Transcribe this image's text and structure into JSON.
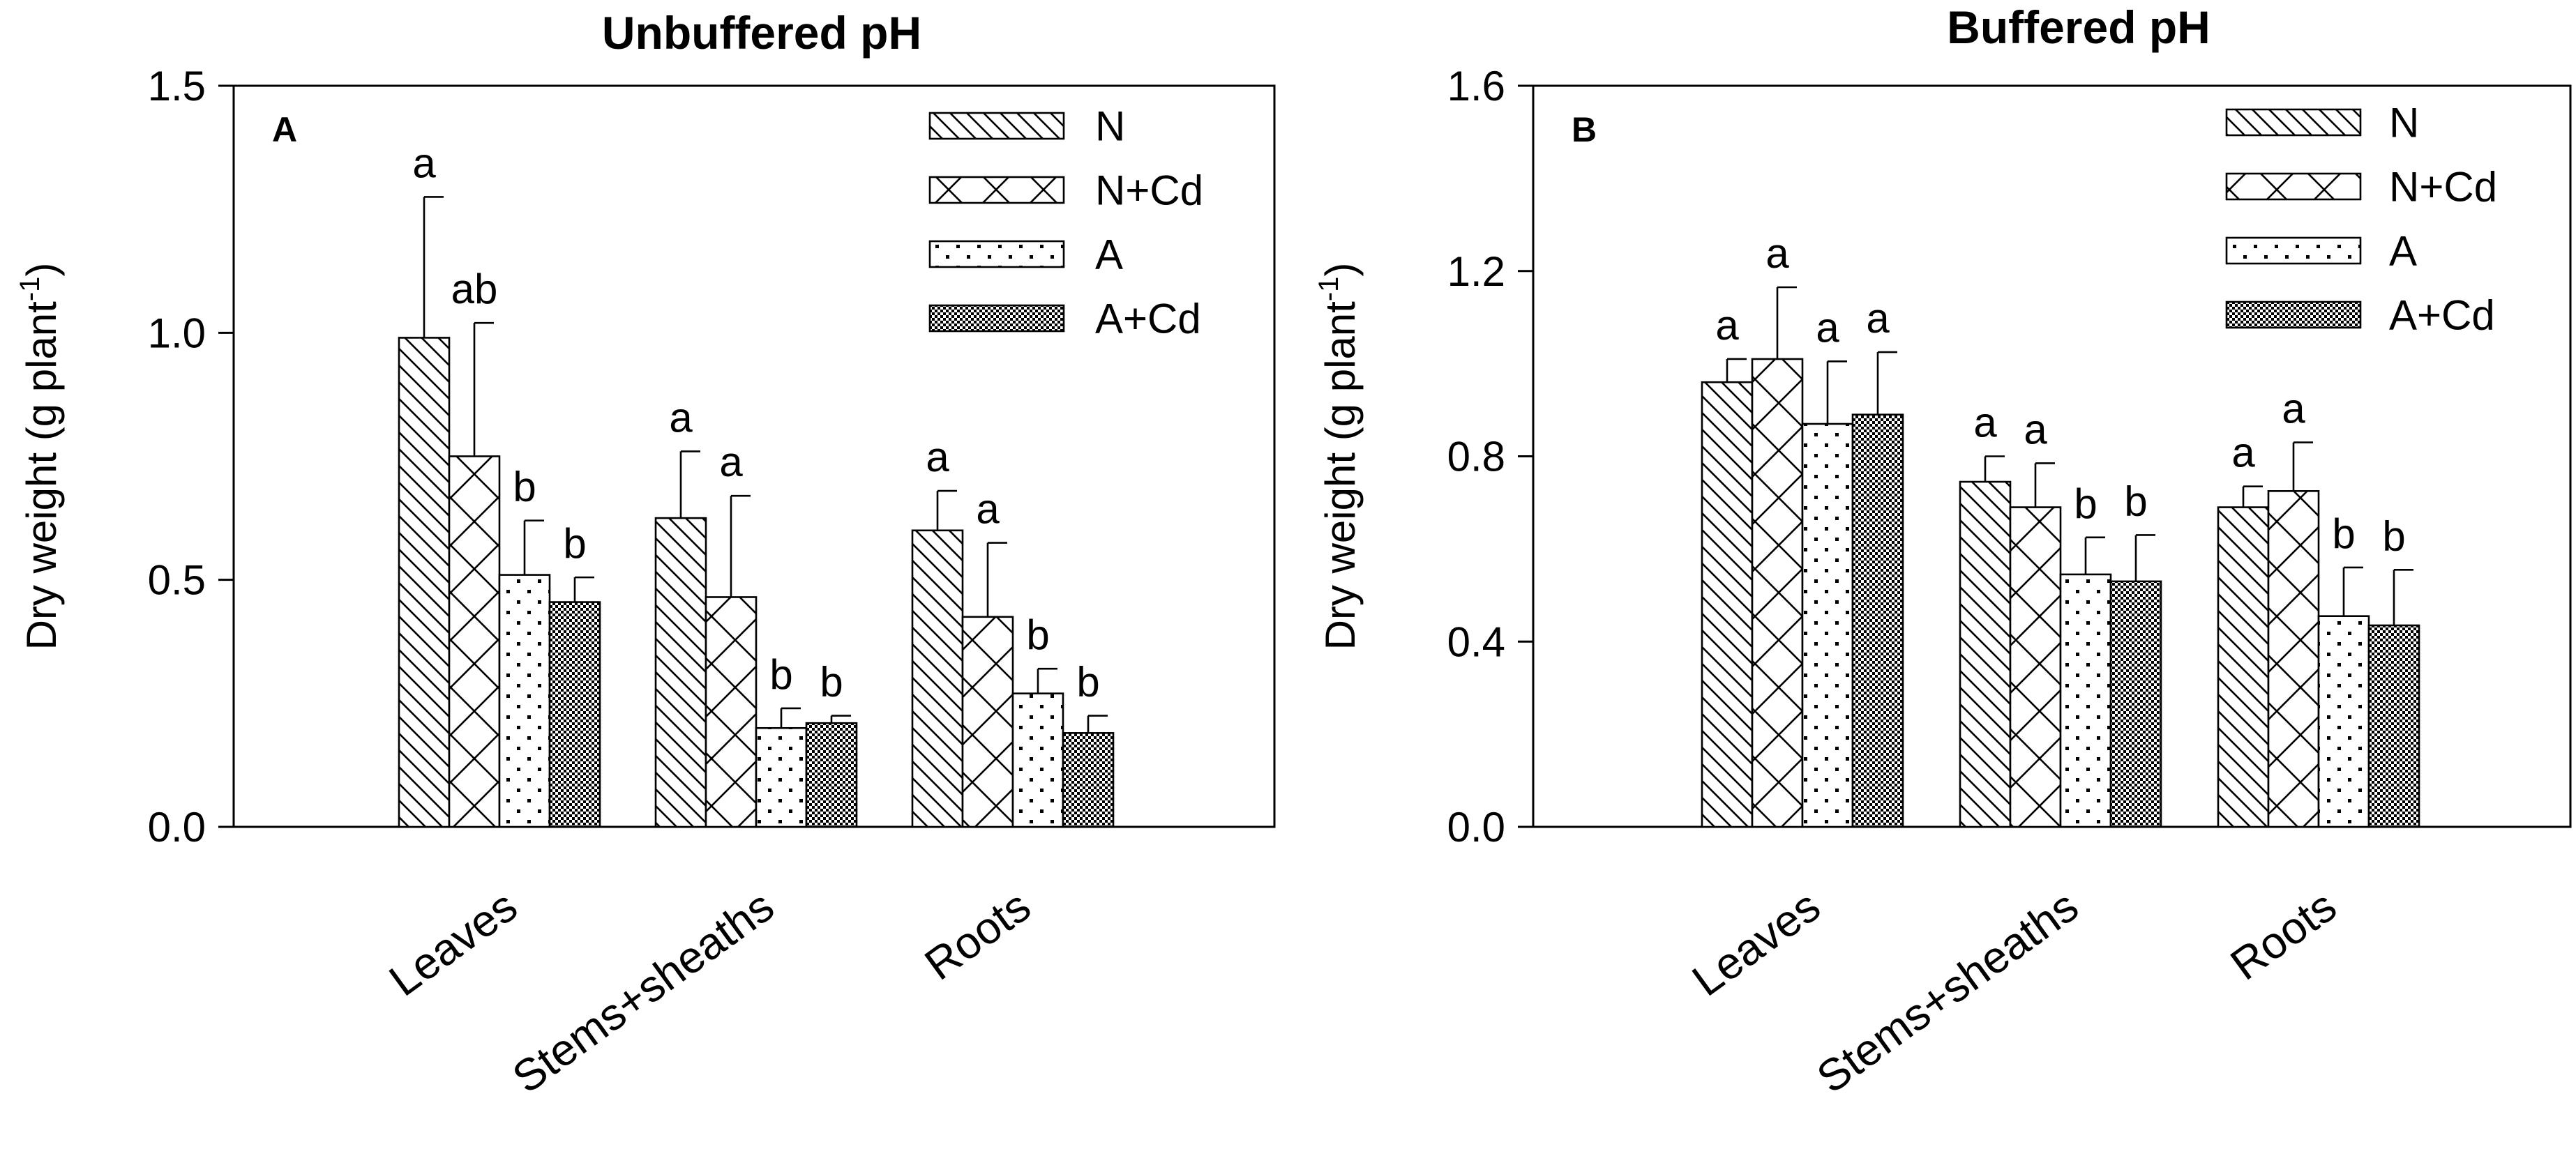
{
  "figure": {
    "series_styles": [
      {
        "series": "N",
        "pattern": "diag-back"
      },
      {
        "series": "N+Cd",
        "pattern": "cross"
      },
      {
        "series": "A",
        "pattern": "dots"
      },
      {
        "series": "A+Cd",
        "pattern": "checker"
      }
    ],
    "colors": {
      "ink": "#000000",
      "background": "#ffffff"
    }
  },
  "chart_data": [
    {
      "id": "A",
      "type": "bar",
      "title": "Unbuffered pH",
      "panel_label": "A",
      "xlabel": "",
      "ylabel": "Dry weight (g plant",
      "ylabel_superscript": "-1",
      "ylabel_close": ")",
      "ylim": [
        0,
        1.5
      ],
      "yticks": [
        0,
        0.5,
        1.0,
        1.5
      ],
      "ytick_labels": [
        "0.0",
        "0.5",
        "1.0",
        "1.5"
      ],
      "categories": [
        "Leaves",
        "Stems+sheaths",
        "Roots"
      ],
      "legend_position": "top-right",
      "series": [
        {
          "name": "N",
          "values": [
            0.99,
            0.625,
            0.6
          ],
          "errors": [
            0.285,
            0.135,
            0.08
          ],
          "labels": [
            "a",
            "a",
            "a"
          ]
        },
        {
          "name": "N+Cd",
          "values": [
            0.75,
            0.465,
            0.425
          ],
          "errors": [
            0.27,
            0.205,
            0.15
          ],
          "labels": [
            "ab",
            "a",
            "a"
          ]
        },
        {
          "name": "A",
          "values": [
            0.51,
            0.2,
            0.27
          ],
          "errors": [
            0.11,
            0.04,
            0.05
          ],
          "labels": [
            "b",
            "b",
            "b"
          ]
        },
        {
          "name": "A+Cd",
          "values": [
            0.455,
            0.21,
            0.19
          ],
          "errors": [
            0.05,
            0.015,
            0.035
          ],
          "labels": [
            "b",
            "b",
            "b"
          ]
        }
      ]
    },
    {
      "id": "B",
      "type": "bar",
      "title": "Buffered pH",
      "panel_label": "B",
      "xlabel": "",
      "ylabel": "Dry weight (g plant",
      "ylabel_superscript": "-1",
      "ylabel_close": ")",
      "ylim": [
        0,
        1.6
      ],
      "yticks": [
        0,
        0.4,
        0.8,
        1.2,
        1.6
      ],
      "ytick_labels": [
        "0.0",
        "0.4",
        "0.8",
        "1.2",
        "1.6"
      ],
      "categories": [
        "Leaves",
        "Stems+sheaths",
        "Roots"
      ],
      "legend_position": "top-right",
      "series": [
        {
          "name": "N",
          "values": [
            0.96,
            0.745,
            0.69
          ],
          "errors": [
            0.05,
            0.055,
            0.045
          ],
          "labels": [
            "a",
            "a",
            "a"
          ]
        },
        {
          "name": "N+Cd",
          "values": [
            1.01,
            0.69,
            0.725
          ],
          "errors": [
            0.155,
            0.095,
            0.105
          ],
          "labels": [
            "a",
            "a",
            "a"
          ]
        },
        {
          "name": "A",
          "values": [
            0.87,
            0.545,
            0.455
          ],
          "errors": [
            0.135,
            0.08,
            0.105
          ],
          "labels": [
            "a",
            "b",
            "b"
          ]
        },
        {
          "name": "A+Cd",
          "values": [
            0.89,
            0.53,
            0.435
          ],
          "errors": [
            0.135,
            0.1,
            0.12
          ],
          "labels": [
            "a",
            "b",
            "b"
          ]
        }
      ]
    }
  ]
}
